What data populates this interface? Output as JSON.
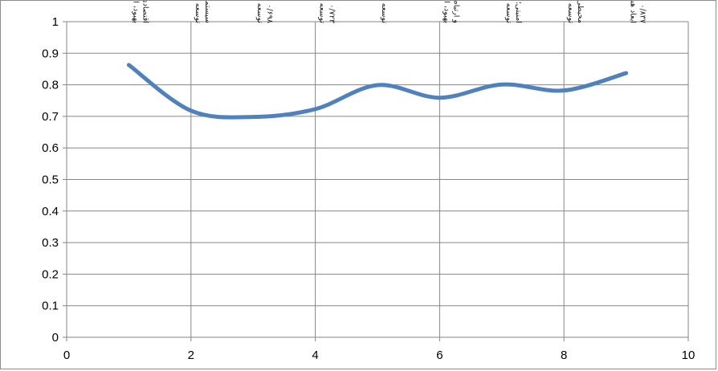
{
  "chart_data": {
    "type": "line",
    "title": "",
    "xlabel": "",
    "ylabel": "",
    "xlim": [
      0,
      10
    ],
    "ylim": [
      0,
      1
    ],
    "x_ticks": [
      "0",
      "2",
      "4",
      "6",
      "8",
      "10"
    ],
    "y_ticks": [
      "0",
      "0.1",
      "0.2",
      "0.3",
      "0.4",
      "0.5",
      "0.6",
      "0.7",
      "0.8",
      "0.9",
      "1"
    ],
    "grid": "horizontal",
    "legend": "none",
    "line_color": "#4f81bd",
    "series": [
      {
        "x": [
          1,
          2,
          3,
          4,
          5,
          6,
          7,
          8,
          9
        ],
        "values": [
          0.863,
          0.718,
          0.698,
          0.723,
          0.799,
          0.759,
          0.801,
          0.782,
          0.837
        ]
      }
    ],
    "annotations": [
      {
        "x": 1,
        "lines": [
          "بهبود، ارتقاء و توسعه ابعاد مختلف",
          "اقتصادی-تجاری؛ ۰/۸۶۳"
        ]
      },
      {
        "x": 2,
        "lines": [
          "توسعه ابعاد مختلف مدیریت-حکومتی-",
          "سیستمی؛ ۰/۷۱۸"
        ]
      },
      {
        "x": 3,
        "lines": [
          "توسعه ابعاد مختلف فناوری اطلاعات؛",
          "۰/۶۹۸"
        ]
      },
      {
        "x": 4,
        "lines": [
          "توسعه ابعاد مختلف اجتماعی-فرهنگی؛",
          "۰/۷۲۳"
        ]
      },
      {
        "x": 5,
        "lines": [
          "توسعه ابعاد مختلف زیربنایی؛ ۰/۷۹۹"
        ]
      },
      {
        "x": 6,
        "lines": [
          "بهبود، ارتقاء و توسعه ابعاد حمل و نقل",
          "و ارتباطات فضایی؛ ۰/۷۵۹"
        ]
      },
      {
        "x": 7,
        "lines": [
          "توسعه ابعاد مختلف سیاسی-نظامی-",
          "امنیتی؛ ۰/۸۰۱"
        ]
      },
      {
        "x": 8,
        "lines": [
          "توسعه ابعاد مختلف مکانی-زیست",
          "محیطی؛ ۰/۷۸۲"
        ]
      },
      {
        "x": 9,
        "lines": [
          "ابعاد هشتگانه شهرهای شبه جهانی؛",
          "۰/۸۳۷"
        ]
      }
    ]
  }
}
